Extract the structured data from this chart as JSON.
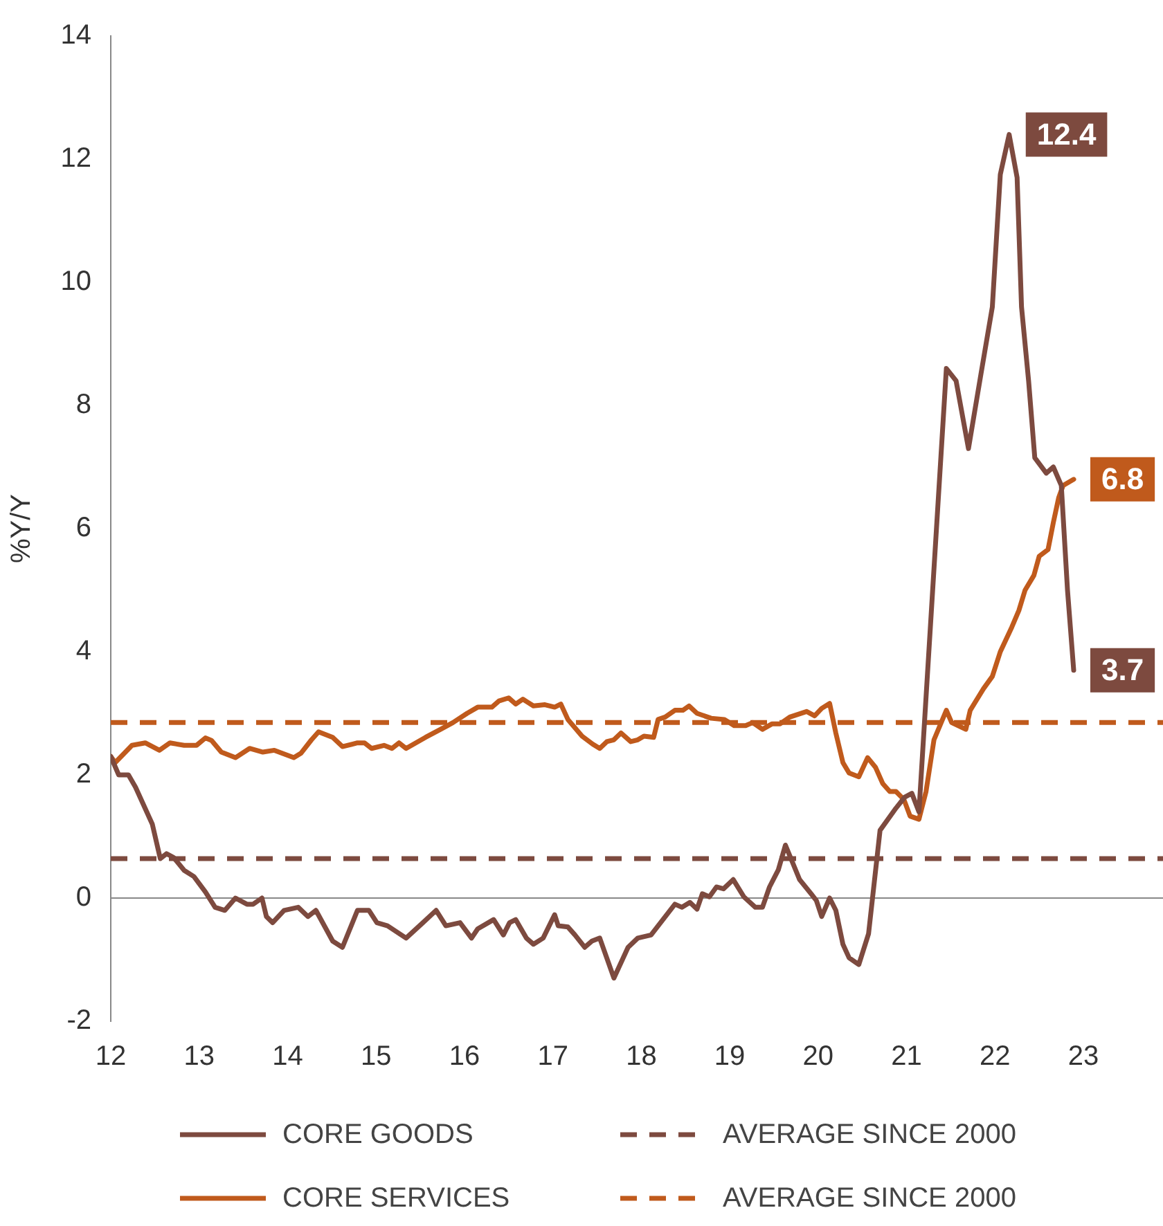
{
  "chart_data": {
    "type": "line",
    "ylabel": "%Y/Y",
    "xlim": [
      12,
      23.9
    ],
    "xticks": [
      12,
      13,
      14,
      15,
      16,
      17,
      18,
      19,
      20,
      21,
      22,
      23
    ],
    "ylim": [
      -2,
      14
    ],
    "yticks": [
      -2,
      0,
      2,
      4,
      6,
      8,
      10,
      12,
      14
    ],
    "legend": "bottom",
    "marker": "none",
    "series": [
      {
        "name": "CORE GOODS",
        "color": "#7d4a3f",
        "x": [
          12.0,
          12.09,
          12.2,
          12.28,
          12.47,
          12.56,
          12.63,
          12.71,
          12.83,
          12.94,
          13.07,
          13.18,
          13.29,
          13.41,
          13.54,
          13.61,
          13.71,
          13.76,
          13.83,
          13.96,
          14.12,
          14.23,
          14.32,
          14.51,
          14.62,
          14.79,
          14.92,
          15.01,
          15.13,
          15.34,
          15.53,
          15.68,
          15.79,
          15.95,
          16.08,
          16.15,
          16.33,
          16.44,
          16.51,
          16.58,
          16.7,
          16.78,
          16.89,
          17.02,
          17.06,
          17.17,
          17.25,
          17.36,
          17.44,
          17.53,
          17.69,
          17.85,
          17.96,
          18.11,
          18.38,
          18.46,
          18.55,
          18.63,
          18.69,
          18.77,
          18.85,
          18.93,
          19.04,
          19.16,
          19.29,
          19.37,
          19.45,
          19.55,
          19.63,
          19.79,
          19.92,
          19.98,
          20.04,
          20.13,
          20.2,
          20.28,
          20.35,
          20.46,
          20.57,
          20.7,
          20.88,
          20.98,
          21.06,
          21.14,
          21.45,
          21.56,
          21.7,
          21.84,
          21.97,
          22.06,
          22.16,
          22.25,
          22.3,
          22.38,
          22.45,
          22.58,
          22.66,
          22.75,
          22.82,
          22.89
        ],
        "values": [
          2.3,
          2.0,
          2.0,
          1.8,
          1.2,
          0.64,
          0.72,
          0.66,
          0.45,
          0.35,
          0.1,
          -0.15,
          -0.2,
          0.0,
          -0.1,
          -0.1,
          0.0,
          -0.3,
          -0.4,
          -0.2,
          -0.15,
          -0.3,
          -0.2,
          -0.7,
          -0.8,
          -0.2,
          -0.2,
          -0.4,
          -0.45,
          -0.65,
          -0.4,
          -0.2,
          -0.45,
          -0.4,
          -0.65,
          -0.5,
          -0.35,
          -0.6,
          -0.4,
          -0.35,
          -0.65,
          -0.75,
          -0.65,
          -0.27,
          -0.45,
          -0.47,
          -0.6,
          -0.8,
          -0.7,
          -0.65,
          -1.3,
          -0.8,
          -0.65,
          -0.6,
          -0.1,
          -0.15,
          -0.07,
          -0.18,
          0.07,
          0.02,
          0.18,
          0.15,
          0.3,
          0.02,
          -0.15,
          -0.15,
          0.18,
          0.46,
          0.86,
          0.3,
          0.07,
          -0.04,
          -0.3,
          0.0,
          -0.2,
          -0.75,
          -0.97,
          -1.08,
          -0.58,
          1.1,
          1.46,
          1.64,
          1.7,
          1.4,
          8.6,
          8.4,
          7.3,
          8.5,
          9.6,
          11.75,
          12.4,
          11.7,
          9.6,
          8.4,
          7.15,
          6.9,
          7.0,
          6.7,
          5.0,
          3.7
        ],
        "value_labels": [
          null,
          null,
          null,
          null,
          null,
          null,
          null,
          null,
          null,
          null,
          null,
          null,
          null,
          null,
          null,
          null,
          null,
          null,
          null,
          null,
          null,
          null,
          null,
          null,
          null,
          null,
          null,
          null,
          null,
          null,
          null,
          null,
          null,
          null,
          null,
          null,
          null,
          null,
          null,
          null,
          null,
          null,
          null,
          null,
          null,
          null,
          null,
          null,
          null,
          null,
          null,
          null,
          null,
          null,
          null,
          null,
          null,
          null,
          null,
          null,
          null,
          null,
          null,
          null,
          null,
          null,
          null,
          null,
          null,
          null,
          null,
          null,
          null,
          null,
          null,
          null,
          null,
          null,
          null,
          null,
          null,
          null,
          null,
          null,
          null,
          null,
          null,
          null,
          null,
          null,
          "12.4",
          null,
          null,
          null,
          null,
          null,
          null,
          null,
          null,
          "3.7"
        ]
      },
      {
        "name": "CORE SERVICES",
        "color": "#c05a1c",
        "x": [
          12.0,
          12.05,
          12.24,
          12.39,
          12.55,
          12.67,
          12.83,
          12.97,
          13.07,
          13.14,
          13.25,
          13.41,
          13.57,
          13.72,
          13.85,
          14.07,
          14.15,
          14.27,
          14.35,
          14.51,
          14.62,
          14.79,
          14.87,
          14.95,
          15.09,
          15.18,
          15.26,
          15.34,
          15.56,
          15.73,
          15.87,
          16.03,
          16.15,
          16.31,
          16.39,
          16.5,
          16.58,
          16.66,
          16.78,
          16.91,
          17.02,
          17.09,
          17.17,
          17.33,
          17.45,
          17.53,
          17.61,
          17.69,
          17.77,
          17.88,
          17.96,
          18.03,
          18.14,
          18.19,
          18.27,
          18.38,
          18.47,
          18.54,
          18.63,
          18.71,
          18.79,
          18.94,
          19.05,
          19.18,
          19.26,
          19.37,
          19.48,
          19.57,
          19.68,
          19.87,
          19.96,
          20.04,
          20.13,
          20.2,
          20.28,
          20.35,
          20.46,
          20.56,
          20.65,
          20.73,
          20.81,
          20.88,
          20.97,
          21.04,
          21.14,
          21.22,
          21.31,
          21.45,
          21.51,
          21.67,
          21.72,
          21.87,
          21.97,
          22.06,
          22.19,
          22.27,
          22.34,
          22.44,
          22.5,
          22.6,
          22.66,
          22.72,
          22.77,
          22.89
        ],
        "values": [
          2.3,
          2.2,
          2.48,
          2.52,
          2.4,
          2.52,
          2.48,
          2.48,
          2.6,
          2.56,
          2.37,
          2.28,
          2.43,
          2.37,
          2.4,
          2.28,
          2.35,
          2.57,
          2.7,
          2.61,
          2.46,
          2.52,
          2.52,
          2.43,
          2.48,
          2.43,
          2.52,
          2.43,
          2.61,
          2.74,
          2.85,
          3.0,
          3.1,
          3.1,
          3.2,
          3.25,
          3.15,
          3.23,
          3.12,
          3.14,
          3.1,
          3.15,
          2.9,
          2.63,
          2.5,
          2.43,
          2.54,
          2.57,
          2.68,
          2.54,
          2.57,
          2.63,
          2.61,
          2.9,
          2.94,
          3.05,
          3.05,
          3.12,
          3.0,
          2.96,
          2.92,
          2.9,
          2.8,
          2.8,
          2.85,
          2.74,
          2.83,
          2.83,
          2.94,
          3.03,
          2.96,
          3.08,
          3.16,
          2.68,
          2.2,
          2.03,
          1.97,
          2.28,
          2.12,
          1.86,
          1.73,
          1.73,
          1.6,
          1.33,
          1.28,
          1.73,
          2.57,
          3.05,
          2.85,
          2.74,
          3.05,
          3.4,
          3.6,
          4.0,
          4.4,
          4.67,
          5.0,
          5.24,
          5.55,
          5.66,
          6.1,
          6.5,
          6.7,
          6.8
        ],
        "value_labels": [
          null,
          null,
          null,
          null,
          null,
          null,
          null,
          null,
          null,
          null,
          null,
          null,
          null,
          null,
          null,
          null,
          null,
          null,
          null,
          null,
          null,
          null,
          null,
          null,
          null,
          null,
          null,
          null,
          null,
          null,
          null,
          null,
          null,
          null,
          null,
          null,
          null,
          null,
          null,
          null,
          null,
          null,
          null,
          null,
          null,
          null,
          null,
          null,
          null,
          null,
          null,
          null,
          null,
          null,
          null,
          null,
          null,
          null,
          null,
          null,
          null,
          null,
          null,
          null,
          null,
          null,
          null,
          null,
          null,
          null,
          null,
          null,
          null,
          null,
          null,
          null,
          null,
          null,
          null,
          null,
          null,
          null,
          null,
          null,
          null,
          null,
          null,
          null,
          null,
          null,
          null,
          null,
          null,
          null,
          null,
          null,
          null,
          null,
          null,
          null,
          null,
          null,
          null,
          "6.8"
        ]
      }
    ],
    "ref_lines": [
      {
        "axis": "y",
        "value": 0.64,
        "label": "AVERAGE SINCE 2000",
        "color": "#7d4a3f",
        "line_style": "dashed"
      },
      {
        "axis": "y",
        "value": 2.85,
        "label": "AVERAGE SINCE 2000",
        "color": "#c05a1c",
        "line_style": "dashed"
      }
    ]
  }
}
